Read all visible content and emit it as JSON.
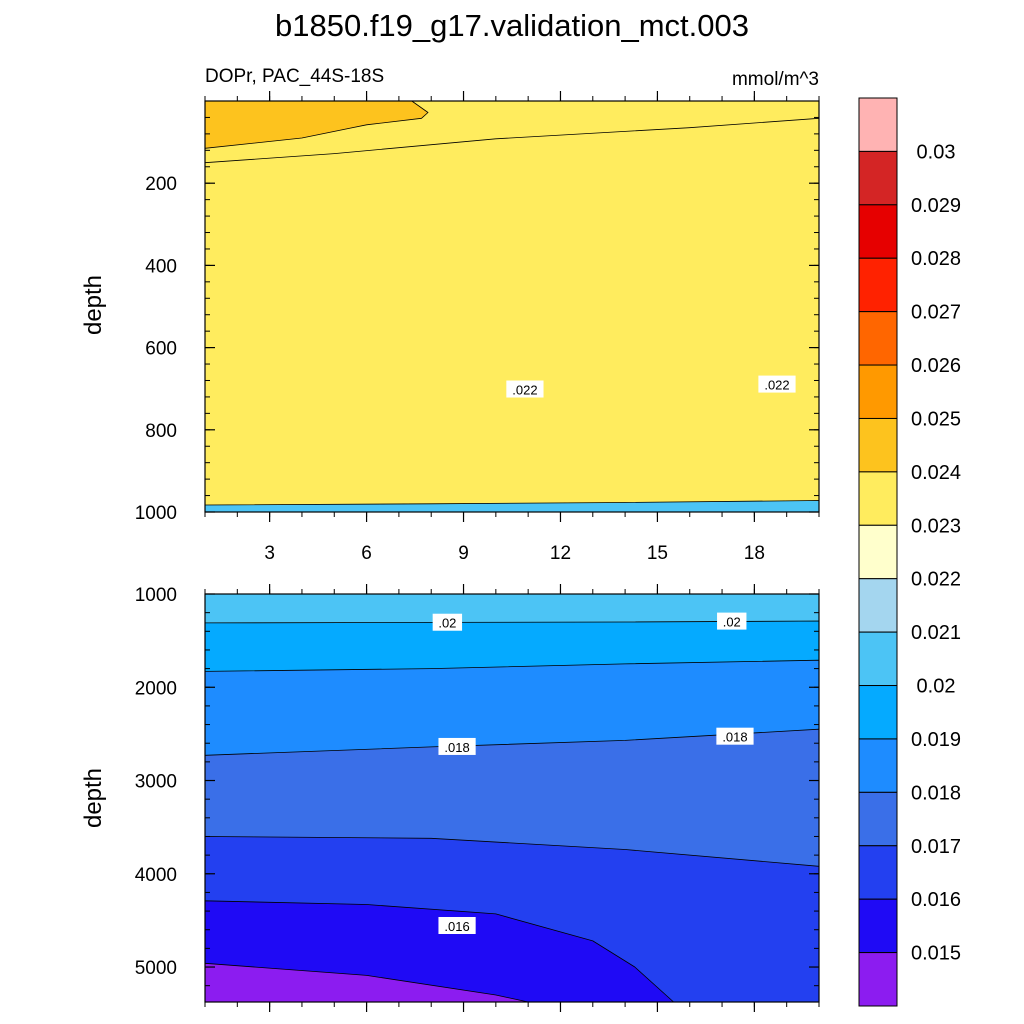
{
  "chart_data": {
    "type": "contour",
    "title": "b1850.f19_g17.validation_mct.003",
    "variable_label": "DOPr, PAC_44S-18S",
    "units_label": "mmol/m^3",
    "colors": {
      "c014": "#8c1cf0",
      "c015": "#1f0af5",
      "c016": "#2340f0",
      "c017": "#3a6fe8",
      "c018": "#1e8cff",
      "c019": "#05aaff",
      "c020": "#4cc4f5",
      "c021": "#a4d6ef",
      "c022": "#ffffcc",
      "c023": "#ffec5e",
      "c024": "#fdc31e",
      "c025": "#ff9900",
      "c026": "#ff6600",
      "c027": "#ff2200",
      "c028": "#e60000",
      "c029": "#d42525",
      "c030": "#ffb3b3"
    },
    "colorbar": {
      "levels": [
        "0.015",
        "0.016",
        "0.017",
        "0.018",
        "0.019",
        "0.02",
        "0.021",
        "0.022",
        "0.023",
        "0.024",
        "0.025",
        "0.026",
        "0.027",
        "0.028",
        "0.029",
        "0.03"
      ],
      "colors": [
        "#8c1cf0",
        "#1f0af5",
        "#2340f0",
        "#3a6fe8",
        "#1e8cff",
        "#05aaff",
        "#4cc4f5",
        "#a4d6ef",
        "#ffffcc",
        "#ffec5e",
        "#fdc31e",
        "#ff9900",
        "#ff6600",
        "#ff2200",
        "#e60000",
        "#d42525",
        "#ffb3b3"
      ]
    },
    "x_axis": {
      "range": [
        1,
        20
      ],
      "ticks": [
        3,
        6,
        9,
        12,
        15,
        18
      ],
      "tick_labels": [
        "3",
        "6",
        "9",
        "12",
        "15",
        "18"
      ]
    },
    "upper_panel": {
      "ylabel": "depth",
      "y_range": [
        0,
        1000
      ],
      "y_ticks": [
        200,
        400,
        600,
        800,
        1000
      ],
      "y_tick_labels": [
        "200",
        "400",
        "600",
        "800",
        "1000"
      ],
      "bands": [
        {
          "fill": "#a4d6ef",
          "from_edge": "bottom",
          "boundary": [
            [
              1,
              715
            ],
            [
              7,
              705
            ],
            [
              13,
              693
            ],
            [
              20,
              688
            ]
          ]
        },
        {
          "fill": "#ffffcc",
          "from_edge": "bottom",
          "boundary": [
            [
              1,
              455
            ],
            [
              6,
              430
            ],
            [
              11,
              403
            ],
            [
              15,
              397
            ],
            [
              20,
              385
            ]
          ]
        },
        {
          "fill": "#ffec5e",
          "from_edge": "bottom",
          "boundary": [
            [
              1,
              150
            ],
            [
              5,
              128
            ],
            [
              10,
              92
            ],
            [
              16,
              65
            ],
            [
              20,
              42
            ]
          ]
        },
        {
          "fill": "#4cc4f5",
          "from_edge": "bottom",
          "boundary": [
            [
              1,
              983
            ],
            [
              8,
              980
            ],
            [
              14,
              977
            ],
            [
              20,
              972
            ]
          ]
        },
        {
          "fill": "#fdc31e",
          "from_edge": "region",
          "boundary": [
            [
              1,
              0
            ],
            [
              7.4,
              0
            ],
            [
              7.9,
              28
            ],
            [
              7.7,
              42
            ],
            [
              6,
              58
            ],
            [
              4,
              90
            ],
            [
              1,
              115
            ]
          ]
        }
      ],
      "contour_labels": [
        {
          "text": ".022",
          "x": 10.9,
          "y": 702
        },
        {
          "text": ".022",
          "x": 18.7,
          "y": 690
        }
      ]
    },
    "lower_panel": {
      "ylabel": "depth",
      "y_range": [
        1000,
        5375
      ],
      "y_ticks": [
        1000,
        2000,
        3000,
        4000,
        5000
      ],
      "y_tick_labels": [
        "1000",
        "2000",
        "3000",
        "4000",
        "5000"
      ],
      "bands": [
        {
          "fill": "#05aaff",
          "from_edge": "bottom",
          "boundary": [
            [
              1,
              1310
            ],
            [
              8,
              1305
            ],
            [
              14,
              1300
            ],
            [
              20,
              1290
            ]
          ]
        },
        {
          "fill": "#1e8cff",
          "from_edge": "bottom",
          "boundary": [
            [
              1,
              1830
            ],
            [
              8,
              1800
            ],
            [
              14,
              1750
            ],
            [
              20,
              1710
            ]
          ]
        },
        {
          "fill": "#3a6fe8",
          "from_edge": "bottom",
          "boundary": [
            [
              1,
              2730
            ],
            [
              8,
              2640
            ],
            [
              14,
              2570
            ],
            [
              20,
              2450
            ]
          ]
        },
        {
          "fill": "#2340f0",
          "from_edge": "bottom",
          "boundary": [
            [
              1,
              3600
            ],
            [
              8,
              3620
            ],
            [
              14,
              3740
            ],
            [
              20,
              3920
            ]
          ]
        },
        {
          "fill": "#1f0af5",
          "from_edge": "bottom",
          "boundary": [
            [
              1,
              4290
            ],
            [
              6,
              4330
            ],
            [
              10,
              4430
            ],
            [
              13,
              4720
            ],
            [
              14.3,
              5000
            ],
            [
              15.5,
              5375
            ],
            [
              20,
              5375
            ]
          ]
        },
        {
          "fill": "#8c1cf0",
          "from_edge": "bottom",
          "boundary": [
            [
              1,
              4960
            ],
            [
              6,
              5090
            ],
            [
              10,
              5300
            ],
            [
              11,
              5375
            ],
            [
              20,
              5375
            ]
          ]
        }
      ],
      "contour_labels": [
        {
          "text": ".02",
          "x": 8.5,
          "y": 1308
        },
        {
          "text": ".02",
          "x": 17.3,
          "y": 1296
        },
        {
          "text": ".018",
          "x": 8.8,
          "y": 2640
        },
        {
          "text": ".018",
          "x": 17.4,
          "y": 2530
        },
        {
          "text": ".016",
          "x": 8.8,
          "y": 4560
        }
      ]
    }
  }
}
